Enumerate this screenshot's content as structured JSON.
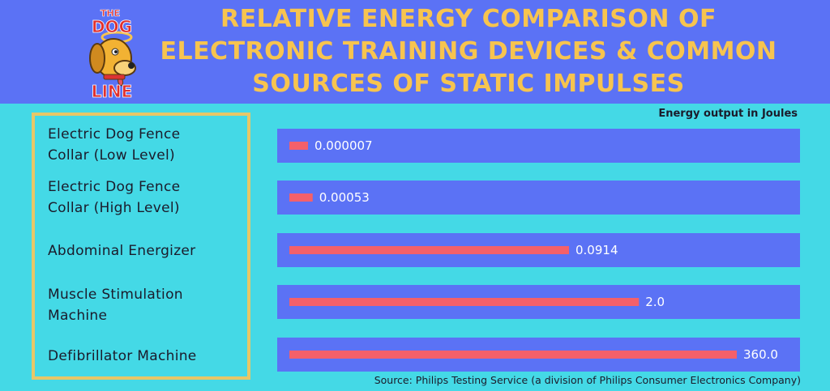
{
  "header": {
    "title_lines": [
      "RELATIVE ENERGY COMPARISON OF",
      "ELECTRONIC TRAINING DEVICES & COMMON",
      "SOURCES OF STATIC IMPULSES"
    ],
    "logo_text_top": "THE",
    "logo_text_mid": "DOG",
    "logo_text_bottom": "LINE"
  },
  "colors": {
    "background": "#44d9e6",
    "header": "#5b72f5",
    "track": "#5b72f5",
    "bar": "#f4606a",
    "title": "#f7c44f",
    "frame": "#e7c767"
  },
  "chart_data": {
    "type": "bar",
    "orientation": "horizontal",
    "unit_label": "Energy output in Joules",
    "categories": [
      [
        "Electric Dog Fence",
        "Collar (Low Level)"
      ],
      [
        "Electric Dog Fence",
        "Collar (High Level)"
      ],
      [
        "Abdominal Energizer"
      ],
      [
        "Muscle Stimulation",
        "Machine"
      ],
      [
        "Defibrillator Machine"
      ]
    ],
    "values": [
      7e-06,
      0.00053,
      0.0914,
      2.0,
      360.0
    ],
    "value_labels": [
      "0.000007",
      "0.00053",
      "0.0914",
      "2.0",
      "360.0"
    ],
    "scale": "non-linear (not to scale)",
    "relative_fill": [
      0.04,
      0.05,
      0.6,
      0.75,
      0.96
    ],
    "grid": false,
    "legend": "none"
  },
  "footer": {
    "source": "Source: Philips Testing Service (a division of Philips Consumer Electronics Company)"
  }
}
